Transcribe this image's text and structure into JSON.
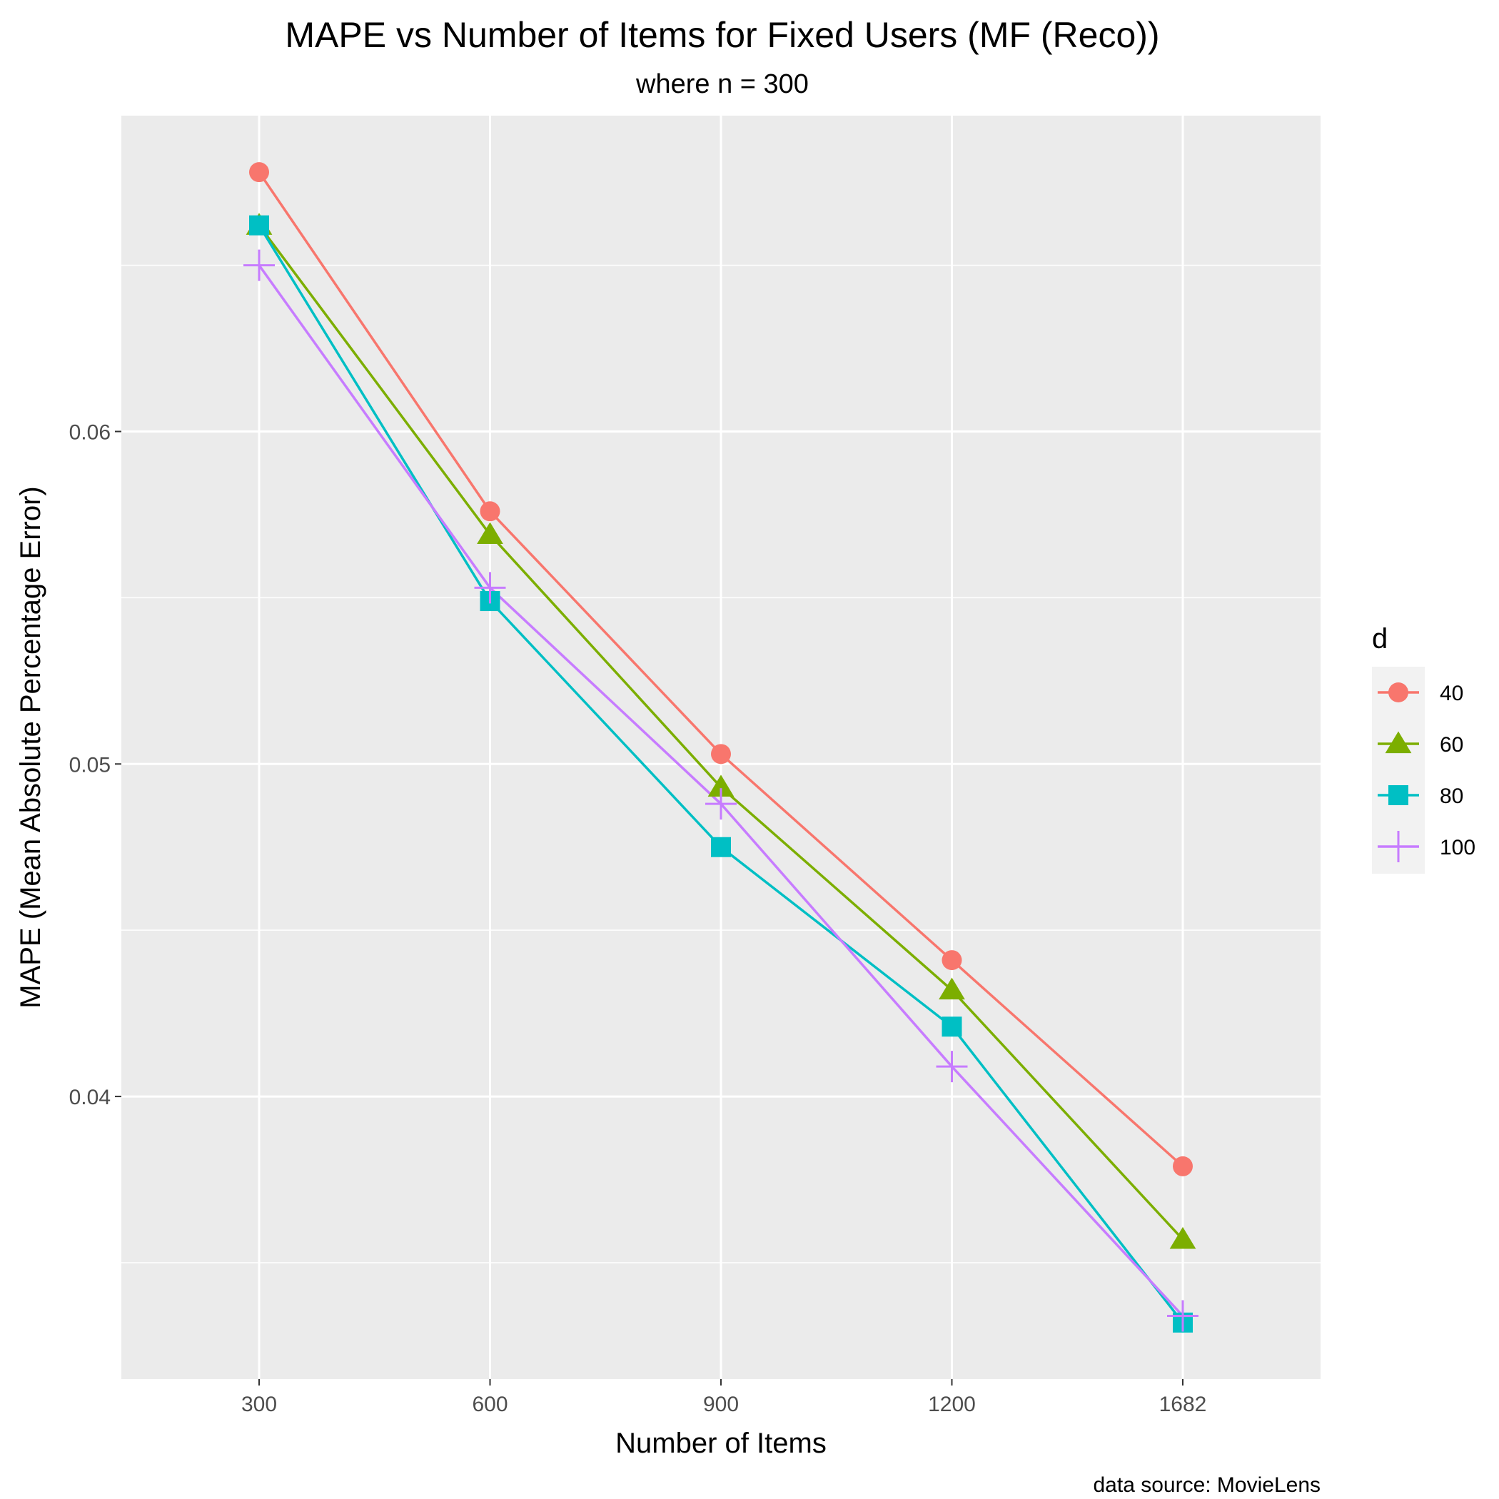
{
  "chart_data": {
    "type": "line",
    "title": "MAPE vs Number of Items for Fixed Users (MF (Reco))",
    "subtitle": "where n = 300",
    "xlabel": "Number of Items",
    "ylabel": "MAPE (Mean Absolute Percentage Error)",
    "caption": "data source: MovieLens",
    "categories": [
      "300",
      "600",
      "900",
      "1200",
      "1682"
    ],
    "y_ticks": [
      "0.04",
      "0.05",
      "0.06"
    ],
    "ylim": [
      0.0315,
      0.0695
    ],
    "grid": true,
    "legend": {
      "title": "d",
      "position": "right"
    },
    "series": [
      {
        "name": "40",
        "color": "#F8766D",
        "shape": "circle",
        "values": [
          0.0678,
          0.0576,
          0.0503,
          0.0441,
          0.0379
        ]
      },
      {
        "name": "60",
        "color": "#7CAE00",
        "shape": "triangle",
        "values": [
          0.0662,
          0.0569,
          0.0493,
          0.0432,
          0.0357
        ]
      },
      {
        "name": "80",
        "color": "#00BFC4",
        "shape": "square",
        "values": [
          0.0662,
          0.0549,
          0.0475,
          0.0421,
          0.0332
        ]
      },
      {
        "name": "100",
        "color": "#C77CFF",
        "shape": "plus",
        "values": [
          0.065,
          0.0553,
          0.0488,
          0.0409,
          0.0334
        ]
      }
    ]
  }
}
